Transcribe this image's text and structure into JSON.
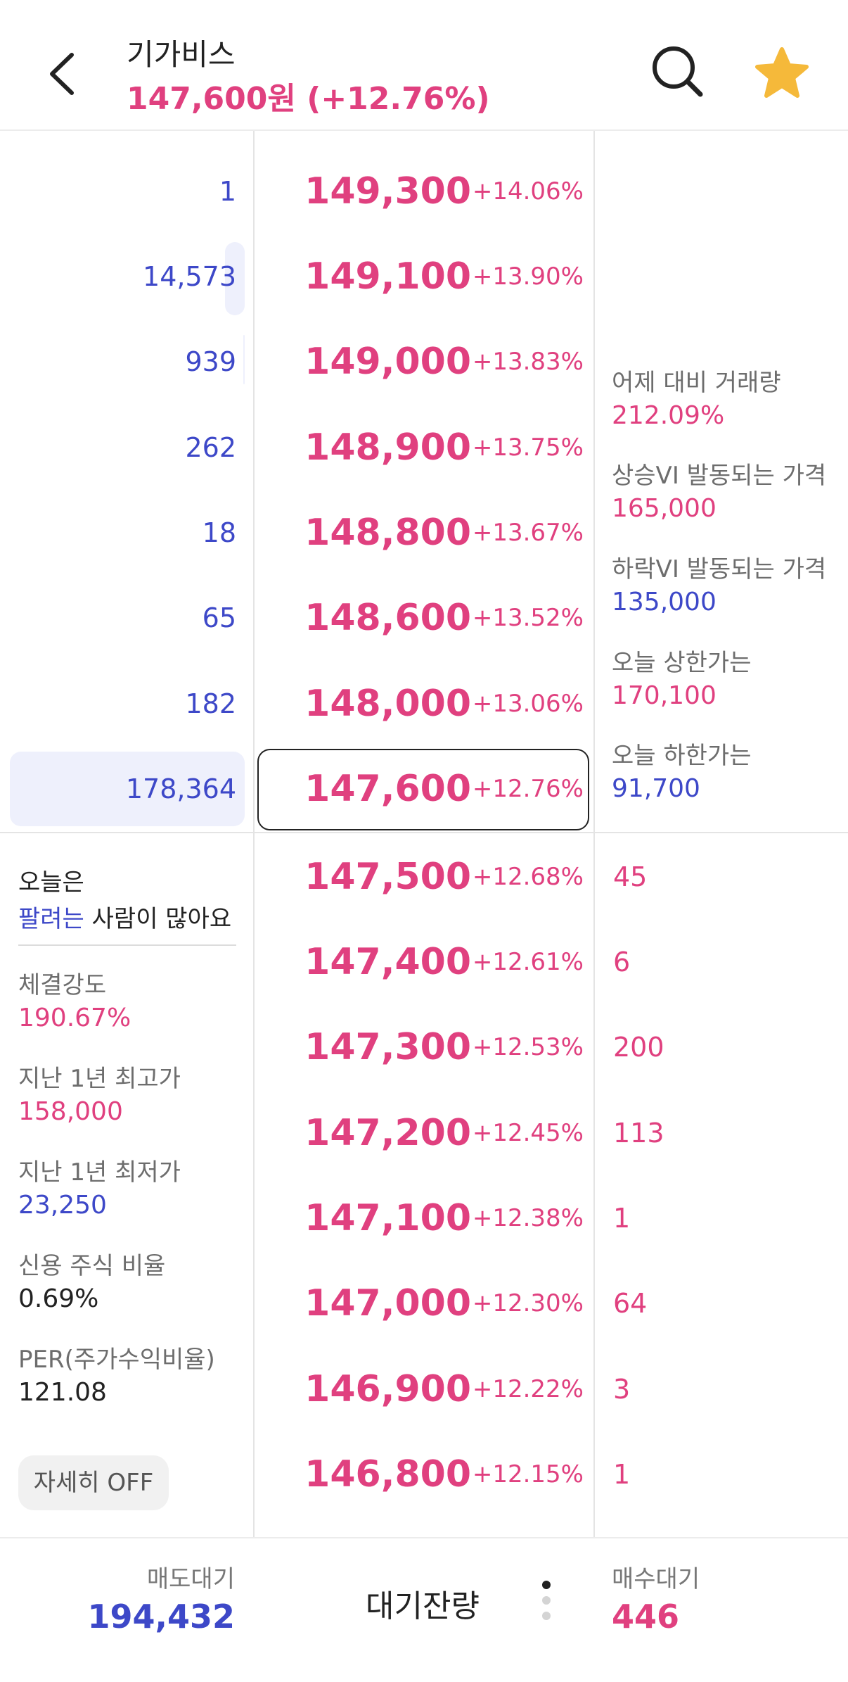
{
  "header": {
    "stock_name": "기가비스",
    "price_text": "147,600원 (+12.76%)",
    "icons": [
      "chevron-left-icon",
      "search-icon",
      "star-icon"
    ],
    "star_color": "#f5b93a"
  },
  "colors": {
    "up": "#e0407f",
    "down": "#3d48c8"
  },
  "asks": [
    {
      "volume": "1",
      "price": "149,300",
      "change": "+14.06%"
    },
    {
      "volume": "14,573",
      "price": "149,100",
      "change": "+13.90%"
    },
    {
      "volume": "939",
      "price": "149,000",
      "change": "+13.83%"
    },
    {
      "volume": "262",
      "price": "148,900",
      "change": "+13.75%"
    },
    {
      "volume": "18",
      "price": "148,800",
      "change": "+13.67%"
    },
    {
      "volume": "65",
      "price": "148,600",
      "change": "+13.52%"
    },
    {
      "volume": "182",
      "price": "148,000",
      "change": "+13.06%"
    },
    {
      "volume": "178,364",
      "price": "147,600",
      "change": "+12.76%"
    }
  ],
  "bids": [
    {
      "price": "147,500",
      "change": "+12.68%",
      "volume": "45"
    },
    {
      "price": "147,400",
      "change": "+12.61%",
      "volume": "6"
    },
    {
      "price": "147,300",
      "change": "+12.53%",
      "volume": "200"
    },
    {
      "price": "147,200",
      "change": "+12.45%",
      "volume": "113"
    },
    {
      "price": "147,100",
      "change": "+12.38%",
      "volume": "1"
    },
    {
      "price": "147,000",
      "change": "+12.30%",
      "volume": "64"
    },
    {
      "price": "146,900",
      "change": "+12.22%",
      "volume": "3"
    },
    {
      "price": "146,800",
      "change": "+12.15%",
      "volume": "1"
    }
  ],
  "market_info": {
    "volume_vs_yesterday_label": "어제 대비 거래량",
    "volume_vs_yesterday": "212.09%",
    "upper_vi_label": "상승VI  발동되는 가격",
    "upper_vi": "165,000",
    "lower_vi_label": "하락VI  발동되는 가격",
    "lower_vi": "135,000",
    "upper_limit_label": "오늘 상한가는",
    "upper_limit": "170,100",
    "lower_limit_label": "오늘 하한가는",
    "lower_limit": "91,700"
  },
  "sentiment": {
    "line1": "오늘은",
    "line2_highlight": "팔려는",
    "line2_rest": " 사람이 많아요"
  },
  "stats": {
    "strength_label": "체결강도",
    "strength": "190.67%",
    "high_1y_label": "지난 1년 최고가",
    "high_1y": "158,000",
    "low_1y_label": "지난 1년 최저가",
    "low_1y": "23,250",
    "credit_label": "신용 주식 비율",
    "credit": "0.69%",
    "per_label": "PER(주가수익비율)",
    "per": "121.08"
  },
  "detail_toggle": "자세히 OFF",
  "footer": {
    "sell_wait_label": "매도대기",
    "sell_wait": "194,432",
    "center_label": "대기잔량",
    "buy_wait_label": "매수대기",
    "buy_wait": "446"
  }
}
